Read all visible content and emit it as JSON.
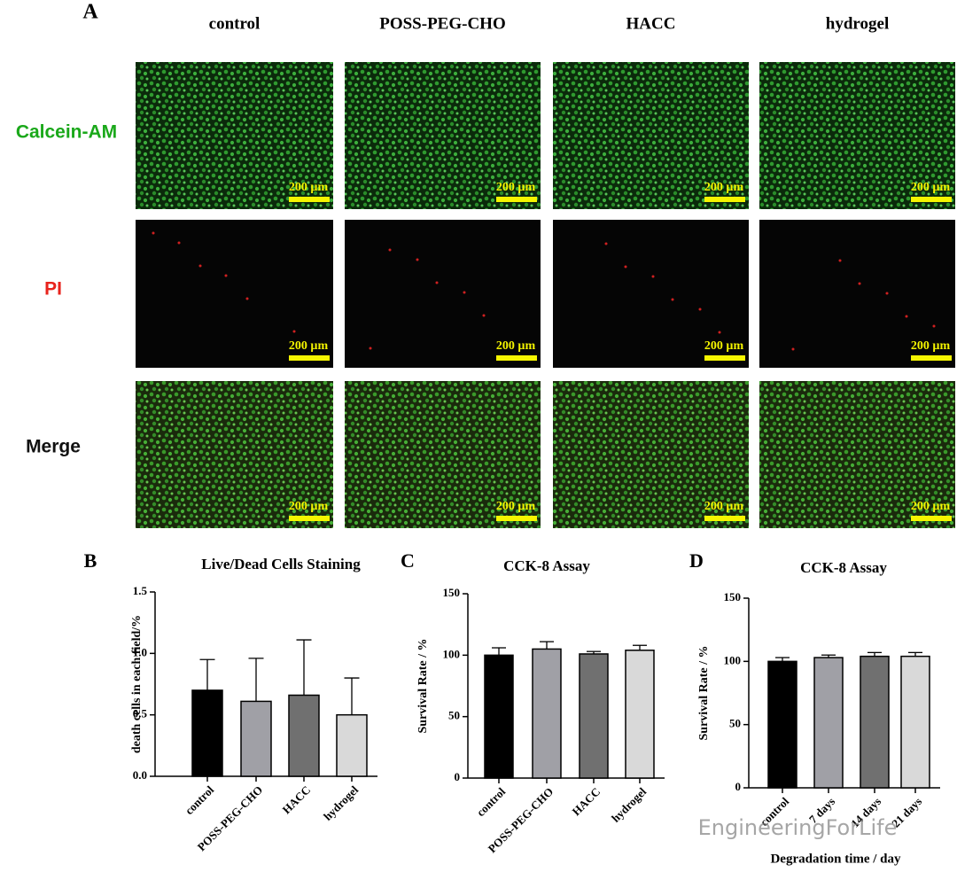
{
  "panel_a": {
    "label": "A",
    "columns": [
      "control",
      "POSS-PEG-CHO",
      "HACC",
      "hydrogel"
    ],
    "rows": [
      "Calcein-AM",
      "PI",
      "Merge"
    ],
    "scale_bar": "200 µm"
  },
  "watermark": "EngineeringForLife",
  "chart_data": [
    {
      "type": "bar",
      "panel": "B",
      "title": "Live/Dead Cells Staining",
      "ylabel": "death cells in each field/%",
      "categories": [
        "control",
        "POSS-PEG-CHO",
        "HACC",
        "hydrogel"
      ],
      "values": [
        0.7,
        0.61,
        0.66,
        0.5
      ],
      "errors": [
        0.25,
        0.35,
        0.45,
        0.3
      ],
      "colors": [
        "#000000",
        "#a0a0a6",
        "#707070",
        "#d9d9d9"
      ],
      "ylim": [
        0,
        1.5
      ],
      "yticks": [
        {
          "value": 0,
          "label": "0.0"
        },
        0.5,
        {
          "value": 1,
          "label": "1.0"
        },
        1.5
      ]
    },
    {
      "type": "bar",
      "panel": "C",
      "title": "CCK-8 Assay",
      "ylabel": "Survival Rate / %",
      "categories": [
        "control",
        "POSS-PEG-CHO",
        "HACC",
        "hydrogel"
      ],
      "values": [
        100,
        105,
        101,
        104
      ],
      "errors": [
        6,
        6,
        2,
        4
      ],
      "colors": [
        "#000000",
        "#a0a0a6",
        "#707070",
        "#d9d9d9"
      ],
      "ylim": [
        0,
        150
      ],
      "yticks": [
        0,
        50,
        100,
        150
      ]
    },
    {
      "type": "bar",
      "panel": "D",
      "title": "CCK-8 Assay",
      "ylabel": "Survival Rate / %",
      "xlabel": "Degradation time / day",
      "categories": [
        "control",
        "7 days",
        "14 days",
        "21 days"
      ],
      "values": [
        100,
        103,
        104,
        104
      ],
      "errors": [
        3,
        2,
        3,
        3
      ],
      "colors": [
        "#000000",
        "#a0a0a6",
        "#707070",
        "#d9d9d9"
      ],
      "ylim": [
        0,
        150
      ],
      "yticks": [
        0,
        50,
        100,
        150
      ]
    }
  ]
}
